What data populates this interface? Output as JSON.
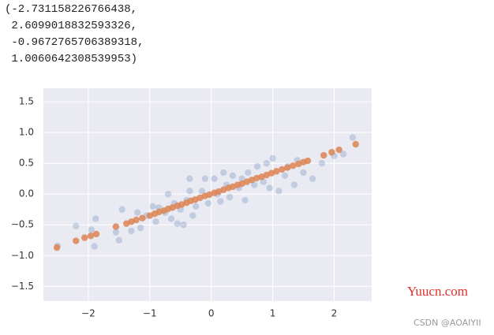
{
  "output_lines": [
    "(-2.731158226766438,",
    " 2.6099018832593326,",
    " -0.9672765706389318,",
    " 1.0060642308539953)"
  ],
  "watermarks": [
    "Yuucn.com",
    "CSDN @AOAIYII"
  ],
  "chart_data": {
    "type": "scatter",
    "xlim": [
      -2.73,
      2.61
    ],
    "ylim": [
      -1.74,
      1.72
    ],
    "xticks": [
      {
        "value": -2,
        "label": "−2"
      },
      {
        "value": -1,
        "label": "−1"
      },
      0,
      1,
      2
    ],
    "yticks": [
      {
        "value": -1.5,
        "label": "−1.5"
      },
      {
        "value": -1,
        "label": "−1.0"
      },
      {
        "value": -0.5,
        "label": "−0.5"
      },
      {
        "value": 0,
        "label": "0.0"
      },
      {
        "value": 0.5,
        "label": "0.5"
      },
      {
        "value": 1,
        "label": "1.0"
      },
      {
        "value": 1.5,
        "label": "1.5"
      }
    ],
    "grid": true,
    "background": "#eaeaf2",
    "series": [
      {
        "color": "#4c72b0",
        "opacity": 0.25,
        "x": [
          -2.5,
          -2.2,
          -1.95,
          -1.88,
          -1.9,
          -1.55,
          -1.5,
          -1.45,
          -1.3,
          -1.2,
          -1.15,
          -1.05,
          -0.95,
          -0.9,
          -0.85,
          -0.75,
          -0.7,
          -0.65,
          -0.6,
          -0.55,
          -0.5,
          -0.45,
          -0.4,
          -0.35,
          -0.3,
          -0.35,
          -0.25,
          -0.15,
          -0.1,
          -0.05,
          0.05,
          0.1,
          0.15,
          0.2,
          0.25,
          0.3,
          0.35,
          0.45,
          0.5,
          0.55,
          0.6,
          0.7,
          0.75,
          0.85,
          0.9,
          0.95,
          1.0,
          1.1,
          1.2,
          1.25,
          1.35,
          1.4,
          1.5,
          1.65,
          1.8,
          2.0,
          2.15,
          2.3
        ],
        "y": [
          -0.84,
          -0.52,
          -0.58,
          -0.4,
          -0.85,
          -0.62,
          -0.75,
          -0.25,
          -0.6,
          -0.3,
          -0.55,
          -0.35,
          -0.2,
          -0.45,
          -0.22,
          -0.3,
          0.0,
          -0.4,
          -0.15,
          -0.48,
          -0.25,
          -0.5,
          -0.1,
          0.05,
          -0.35,
          0.25,
          -0.2,
          0.05,
          0.25,
          -0.15,
          0.25,
          0.0,
          -0.12,
          0.35,
          0.15,
          -0.05,
          0.3,
          0.1,
          0.25,
          -0.1,
          0.35,
          0.15,
          0.45,
          0.2,
          0.5,
          0.1,
          0.58,
          0.05,
          0.3,
          0.45,
          0.15,
          0.55,
          0.35,
          0.25,
          0.5,
          0.62,
          0.65,
          0.92
        ]
      },
      {
        "color": "#dd8452",
        "opacity": 0.85,
        "x": [
          -2.51,
          -2.2,
          -2.06,
          -1.96,
          -1.87,
          -1.55,
          -1.38,
          -1.3,
          -1.22,
          -1.12,
          -1.0,
          -0.92,
          -0.85,
          -0.77,
          -0.7,
          -0.63,
          -0.55,
          -0.48,
          -0.4,
          -0.33,
          -0.26,
          -0.18,
          -0.1,
          -0.03,
          0.05,
          0.12,
          0.2,
          0.28,
          0.35,
          0.43,
          0.5,
          0.58,
          0.66,
          0.74,
          0.82,
          0.9,
          0.98,
          1.06,
          1.15,
          1.24,
          1.33,
          1.42,
          1.5,
          1.57,
          1.83,
          1.96,
          2.08,
          2.35
        ],
        "y": [
          -0.87,
          -0.76,
          -0.71,
          -0.68,
          -0.65,
          -0.53,
          -0.48,
          -0.45,
          -0.42,
          -0.39,
          -0.35,
          -0.32,
          -0.29,
          -0.27,
          -0.24,
          -0.22,
          -0.19,
          -0.17,
          -0.14,
          -0.11,
          -0.09,
          -0.06,
          -0.03,
          -0.01,
          0.02,
          0.04,
          0.07,
          0.1,
          0.12,
          0.15,
          0.17,
          0.2,
          0.23,
          0.26,
          0.28,
          0.31,
          0.34,
          0.37,
          0.4,
          0.43,
          0.46,
          0.49,
          0.52,
          0.54,
          0.63,
          0.68,
          0.72,
          0.81
        ]
      }
    ]
  }
}
